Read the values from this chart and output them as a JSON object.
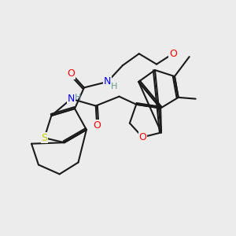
{
  "bg_color": "#ececec",
  "bond_color": "#1a1a1a",
  "bond_width": 1.5,
  "atom_colors": {
    "O": "#ff0000",
    "N": "#0000ff",
    "S": "#cccc00",
    "H": "#669999",
    "C": "#1a1a1a"
  }
}
